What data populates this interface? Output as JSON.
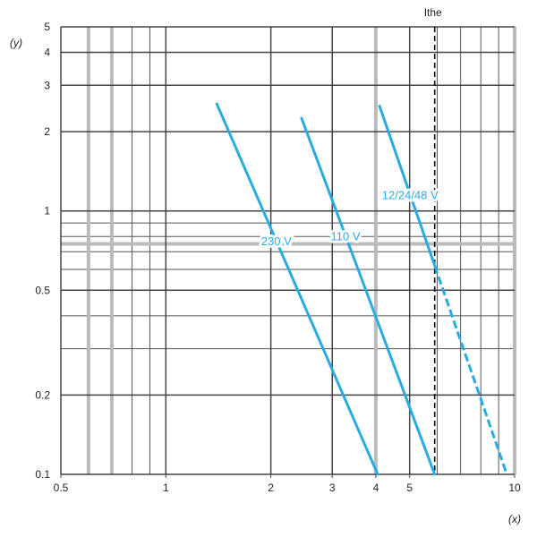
{
  "chart_data": {
    "type": "line",
    "xscale": "log",
    "yscale": "log",
    "xlim": [
      0.5,
      10
    ],
    "ylim": [
      0.1,
      5
    ],
    "grid": true,
    "xlabel": "(x)",
    "ylabel": "(y)",
    "xticks": [
      {
        "value": 0.5,
        "label": "0.5"
      },
      {
        "value": 1,
        "label": "1"
      },
      {
        "value": 2,
        "label": "2"
      },
      {
        "value": 3,
        "label": "3"
      },
      {
        "value": 4,
        "label": "4"
      },
      {
        "value": 5,
        "label": "5"
      },
      {
        "value": 10,
        "label": "10"
      }
    ],
    "yticks": [
      {
        "value": 0.1,
        "label": "0.1"
      },
      {
        "value": 0.2,
        "label": "0.2"
      },
      {
        "value": 0.5,
        "label": "0.5"
      },
      {
        "value": 1,
        "label": "1"
      },
      {
        "value": 2,
        "label": "2"
      },
      {
        "value": 3,
        "label": "3"
      },
      {
        "value": 4,
        "label": "4"
      },
      {
        "value": 5,
        "label": "5"
      }
    ],
    "grid_x_major": [
      0.5,
      1,
      2,
      3,
      4,
      5,
      10
    ],
    "grid_x_minor": [
      0.6,
      0.7,
      0.8,
      0.9,
      6,
      7,
      8,
      9
    ],
    "grid_x_thick": [
      0.6,
      0.7,
      4,
      10
    ],
    "grid_y_major": [
      0.1,
      0.2,
      0.5,
      1,
      2,
      3,
      4,
      5
    ],
    "grid_y_minor": [
      0.3,
      0.4,
      0.6,
      0.7,
      0.8,
      0.9
    ],
    "grid_y_thick": [
      0.75
    ],
    "series": [
      {
        "name": "230 V",
        "color": "#29abe2",
        "x": [
          1.4,
          4.05
        ],
        "y": [
          2.55,
          0.1
        ],
        "dashed_from": null
      },
      {
        "name": "110 V",
        "color": "#29abe2",
        "x": [
          2.45,
          5.9
        ],
        "y": [
          2.25,
          0.1
        ],
        "dashed_from": null
      },
      {
        "name": "12/24/48 V",
        "color": "#29abe2",
        "x": [
          4.1,
          9.5
        ],
        "y": [
          2.5,
          0.1
        ],
        "dashed_from": 5.9
      }
    ],
    "reference_lines": [
      {
        "label": "Ithe",
        "x": 5.9,
        "style": "dashed"
      }
    ]
  }
}
